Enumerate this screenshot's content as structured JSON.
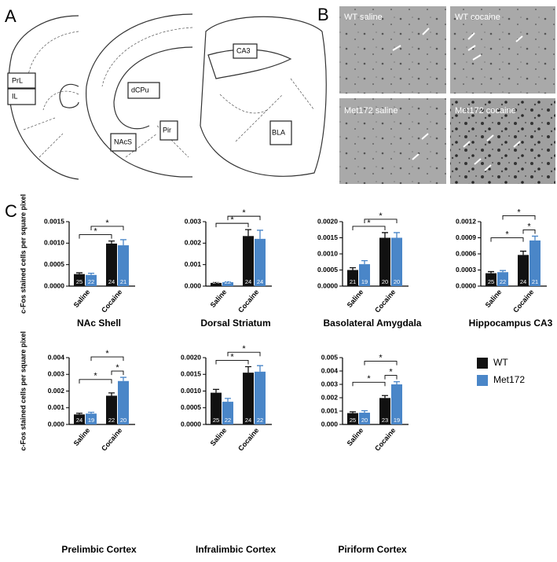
{
  "panel_a": {
    "letter": "A",
    "regions": [
      "PrL",
      "IL",
      "dCPu",
      "NAcS",
      "Pir",
      "CA3",
      "BLA"
    ]
  },
  "panel_b": {
    "letter": "B",
    "images": [
      "WT saline",
      "WT cocaine",
      "Met172 saline",
      "Met172 cocaine"
    ]
  },
  "panel_c": {
    "letter": "C"
  },
  "chart_data": [
    {
      "type": "bar",
      "title": "NAc Shell",
      "ylabel": "c-Fos stained cells per square pixel",
      "categories": [
        "Saline",
        "Cocaine"
      ],
      "series": [
        {
          "color": "#111111",
          "values": [
            0.00028,
            0.00099
          ],
          "errors": [
            3e-05,
            6e-05
          ],
          "n": [
            25,
            24
          ]
        },
        {
          "color": "#4a86c8",
          "values": [
            0.00026,
            0.00095
          ],
          "errors": [
            4e-05,
            0.00013
          ],
          "n": [
            22,
            21
          ]
        }
      ],
      "ylim": [
        0,
        0.0015
      ],
      "yticks": [
        {
          "value": 0,
          "label": "0.0000"
        },
        {
          "value": 0.0005,
          "label": "0.0005"
        },
        {
          "value": 0.001,
          "label": "0.0010"
        },
        {
          "value": 0.0015,
          "label": "0.0015"
        }
      ],
      "significance": [
        {
          "label": "*",
          "from": [
            0,
            0
          ],
          "to": [
            0,
            1
          ]
        },
        {
          "label": "*",
          "from": [
            1,
            0
          ],
          "to": [
            1,
            1
          ]
        }
      ]
    },
    {
      "type": "bar",
      "title": "Dorsal Striatum",
      "categories": [
        "Saline",
        "Cocaine"
      ],
      "series": [
        {
          "color": "#111111",
          "values": [
            0.00015,
            0.00233
          ],
          "errors": [
            2e-05,
            0.0003
          ],
          "n": [
            24,
            24
          ]
        },
        {
          "color": "#4a86c8",
          "values": [
            0.00018,
            0.0022
          ],
          "errors": [
            2e-05,
            0.0004
          ],
          "n": [
            22,
            24
          ]
        }
      ],
      "ylim": [
        0,
        0.003
      ],
      "yticks": [
        {
          "value": 0,
          "label": "0.000"
        },
        {
          "value": 0.001,
          "label": "0.001"
        },
        {
          "value": 0.002,
          "label": "0.002"
        },
        {
          "value": 0.003,
          "label": "0.003"
        }
      ],
      "significance": [
        {
          "label": "*",
          "from": [
            0,
            0
          ],
          "to": [
            0,
            1
          ]
        },
        {
          "label": "*",
          "from": [
            1,
            0
          ],
          "to": [
            1,
            1
          ]
        }
      ]
    },
    {
      "type": "bar",
      "title": "Basolateral Amygdala",
      "categories": [
        "Saline",
        "Cocaine"
      ],
      "series": [
        {
          "color": "#111111",
          "values": [
            0.0005,
            0.0015
          ],
          "errors": [
            7e-05,
            0.00016
          ],
          "n": [
            21,
            20
          ]
        },
        {
          "color": "#4a86c8",
          "values": [
            0.00068,
            0.0015
          ],
          "errors": [
            0.00011,
            0.00016
          ],
          "n": [
            19,
            20
          ]
        }
      ],
      "ylim": [
        0,
        0.002
      ],
      "yticks": [
        {
          "value": 0,
          "label": "0.0000"
        },
        {
          "value": 0.0005,
          "label": "0.0005"
        },
        {
          "value": 0.001,
          "label": "0.0010"
        },
        {
          "value": 0.0015,
          "label": "0.0015"
        },
        {
          "value": 0.002,
          "label": "0.0020"
        }
      ],
      "significance": [
        {
          "label": "*",
          "from": [
            0,
            0
          ],
          "to": [
            0,
            1
          ]
        },
        {
          "label": "*",
          "from": [
            1,
            0
          ],
          "to": [
            1,
            1
          ]
        }
      ]
    },
    {
      "type": "bar",
      "title": "Hippocampus CA3",
      "categories": [
        "Saline",
        "Cocaine"
      ],
      "series": [
        {
          "color": "#111111",
          "values": [
            0.00024,
            0.00058
          ],
          "errors": [
            3e-05,
            7e-05
          ],
          "n": [
            25,
            24
          ]
        },
        {
          "color": "#4a86c8",
          "values": [
            0.00026,
            0.00085
          ],
          "errors": [
            3e-05,
            8e-05
          ],
          "n": [
            22,
            21
          ]
        }
      ],
      "ylim": [
        0,
        0.0012
      ],
      "yticks": [
        {
          "value": 0,
          "label": "0.0000"
        },
        {
          "value": 0.0003,
          "label": "0.0003"
        },
        {
          "value": 0.0006,
          "label": "0.0006"
        },
        {
          "value": 0.0009,
          "label": "0.0009"
        },
        {
          "value": 0.0012,
          "label": "0.0012"
        }
      ],
      "significance": [
        {
          "label": "*",
          "from": [
            0,
            1
          ],
          "to": [
            1,
            1
          ]
        },
        {
          "label": "*",
          "from": [
            0,
            0
          ],
          "to": [
            0,
            1
          ]
        },
        {
          "label": "*",
          "from": [
            1,
            0
          ],
          "to": [
            1,
            1
          ]
        }
      ]
    },
    {
      "type": "bar",
      "title": "Prelimbic Cortex",
      "ylabel": "c-Fos stained cells per square pixel",
      "categories": [
        "Saline",
        "Cocaine"
      ],
      "series": [
        {
          "color": "#111111",
          "values": [
            0.0006,
            0.00172
          ],
          "errors": [
            7e-05,
            0.00017
          ],
          "n": [
            24,
            22
          ]
        },
        {
          "color": "#4a86c8",
          "values": [
            0.00065,
            0.0026
          ],
          "errors": [
            8e-05,
            0.00022
          ],
          "n": [
            19,
            20
          ]
        }
      ],
      "ylim": [
        0,
        0.004
      ],
      "yticks": [
        {
          "value": 0,
          "label": "0.000"
        },
        {
          "value": 0.001,
          "label": "0.001"
        },
        {
          "value": 0.002,
          "label": "0.002"
        },
        {
          "value": 0.003,
          "label": "0.003"
        },
        {
          "value": 0.004,
          "label": "0.004"
        }
      ],
      "significance": [
        {
          "label": "*",
          "from": [
            0,
            1
          ],
          "to": [
            1,
            1
          ]
        },
        {
          "label": "*",
          "from": [
            0,
            0
          ],
          "to": [
            0,
            1
          ]
        },
        {
          "label": "*",
          "from": [
            1,
            0
          ],
          "to": [
            1,
            1
          ]
        }
      ]
    },
    {
      "type": "bar",
      "title": "Infralimbic Cortex",
      "categories": [
        "Saline",
        "Cocaine"
      ],
      "series": [
        {
          "color": "#111111",
          "values": [
            0.00095,
            0.00155
          ],
          "errors": [
            0.0001,
            0.00018
          ],
          "n": [
            25,
            24
          ]
        },
        {
          "color": "#4a86c8",
          "values": [
            0.00068,
            0.00158
          ],
          "errors": [
            0.0001,
            0.00018
          ],
          "n": [
            22,
            22
          ]
        }
      ],
      "ylim": [
        0,
        0.002
      ],
      "yticks": [
        {
          "value": 0,
          "label": "0.0000"
        },
        {
          "value": 0.0005,
          "label": "0.0005"
        },
        {
          "value": 0.001,
          "label": "0.0010"
        },
        {
          "value": 0.0015,
          "label": "0.0015"
        },
        {
          "value": 0.002,
          "label": "0.0020"
        }
      ],
      "significance": [
        {
          "label": "*",
          "from": [
            0,
            0
          ],
          "to": [
            0,
            1
          ]
        },
        {
          "label": "*",
          "from": [
            1,
            0
          ],
          "to": [
            1,
            1
          ]
        }
      ]
    },
    {
      "type": "bar",
      "title": "Piriform Cortex",
      "categories": [
        "Saline",
        "Cocaine"
      ],
      "series": [
        {
          "name": "WT",
          "color": "#111111",
          "values": [
            0.00085,
            0.00198
          ],
          "errors": [
            0.0001,
            0.00018
          ],
          "n": [
            25,
            23
          ]
        },
        {
          "name": "Met172",
          "color": "#4a86c8",
          "values": [
            0.00088,
            0.003
          ],
          "errors": [
            0.00015,
            0.0002
          ],
          "n": [
            20,
            19
          ]
        }
      ],
      "ylim": [
        0,
        0.005
      ],
      "yticks": [
        {
          "value": 0,
          "label": "0.000"
        },
        {
          "value": 0.001,
          "label": "0.001"
        },
        {
          "value": 0.002,
          "label": "0.002"
        },
        {
          "value": 0.003,
          "label": "0.003"
        },
        {
          "value": 0.004,
          "label": "0.004"
        },
        {
          "value": 0.005,
          "label": "0.005"
        }
      ],
      "significance": [
        {
          "label": "*",
          "from": [
            0,
            1
          ],
          "to": [
            1,
            1
          ]
        },
        {
          "label": "*",
          "from": [
            0,
            0
          ],
          "to": [
            0,
            1
          ]
        },
        {
          "label": "*",
          "from": [
            1,
            0
          ],
          "to": [
            1,
            1
          ]
        }
      ]
    }
  ]
}
